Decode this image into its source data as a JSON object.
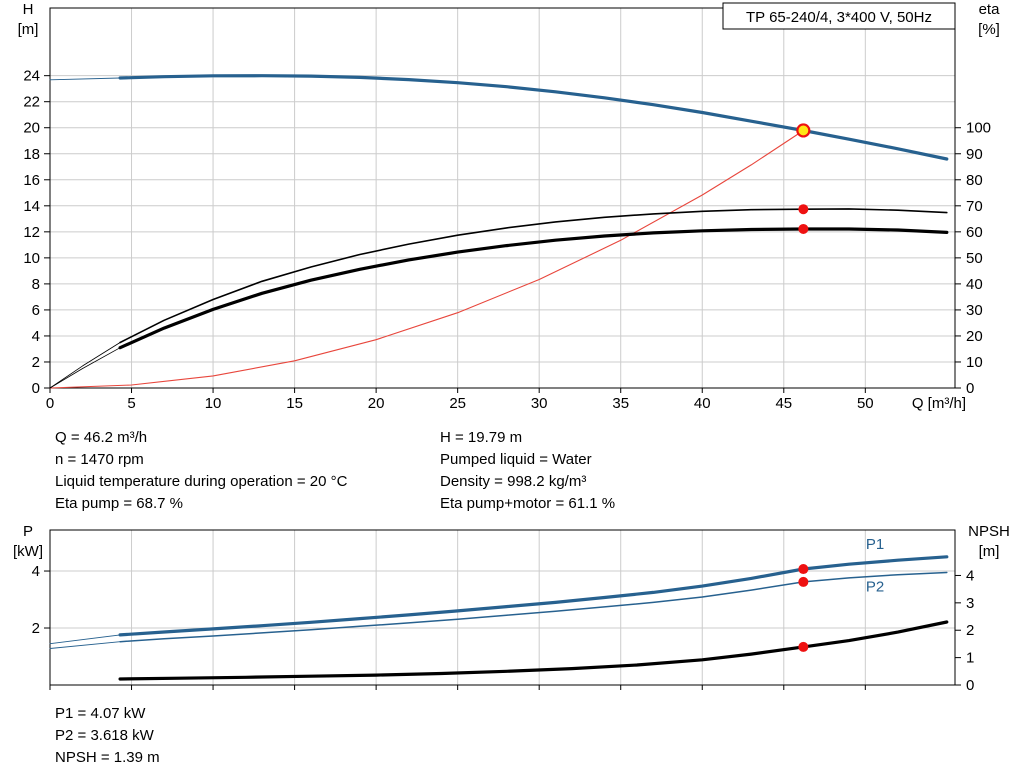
{
  "title_box": "TP 65-240/4, 3*400 V, 50Hz",
  "info": {
    "left": [
      "Q = 46.2 m³/h",
      "n = 1470 rpm",
      "Liquid temperature during operation = 20 °C",
      "Eta pump = 68.7 %"
    ],
    "right": [
      "H = 19.79 m",
      "Pumped liquid = Water",
      "Density = 998.2 kg/m³",
      "Eta pump+motor = 61.1 %"
    ],
    "bottom": [
      "P1 = 4.07 kW",
      "P2 = 3.618 kW",
      "NPSH = 1.39 m"
    ]
  },
  "colors": {
    "curve_blue": "#27618f",
    "system_red": "#e8463c",
    "dot_red": "#ee1111",
    "duty_fill": "#ffe615",
    "grid": "#cccccc",
    "black": "#000000"
  },
  "chart_data": [
    {
      "type": "line",
      "title": "TP 65-240/4, 3*400 V, 50Hz",
      "x_label": "Q [m³/h]",
      "y_left_label": [
        "H",
        "[m]"
      ],
      "y_right_label": [
        "eta",
        "[%]"
      ],
      "x_range": [
        0,
        55.5
      ],
      "x_ticks": [
        0,
        5,
        10,
        15,
        20,
        25,
        30,
        35,
        40,
        45,
        50
      ],
      "x_tick_labels": true,
      "y_left_range": [
        0,
        29.2
      ],
      "y_left_ticks": [
        0,
        2,
        4,
        6,
        8,
        10,
        12,
        14,
        16,
        18,
        20,
        22,
        24
      ],
      "y_right_range": [
        0,
        146
      ],
      "y_right_ticks": [
        0,
        10,
        20,
        30,
        40,
        50,
        60,
        70,
        80,
        90,
        100
      ],
      "series": [
        {
          "name": "head-curve-extension",
          "axis": "left",
          "color": "curve_blue",
          "width": 0.9,
          "points": [
            [
              0,
              23.68
            ],
            [
              4.3,
              23.82
            ]
          ]
        },
        {
          "name": "head-curve",
          "axis": "left",
          "color": "curve_blue",
          "width": 3.2,
          "points": [
            [
              4.3,
              23.82
            ],
            [
              7,
              23.92
            ],
            [
              10,
              23.99
            ],
            [
              13,
              24.0
            ],
            [
              16,
              23.97
            ],
            [
              19,
              23.87
            ],
            [
              22,
              23.7
            ],
            [
              25,
              23.46
            ],
            [
              28,
              23.15
            ],
            [
              31,
              22.76
            ],
            [
              34,
              22.3
            ],
            [
              37,
              21.77
            ],
            [
              40,
              21.17
            ],
            [
              43,
              20.5
            ],
            [
              46.2,
              19.79
            ],
            [
              49,
              19.12
            ],
            [
              52,
              18.38
            ],
            [
              55,
              17.6
            ]
          ]
        },
        {
          "name": "system-curve",
          "axis": "left",
          "color": "system_red",
          "width": 1.1,
          "points": [
            [
              0,
              0
            ],
            [
              5,
              0.23
            ],
            [
              10,
              0.93
            ],
            [
              15,
              2.09
            ],
            [
              20,
              3.71
            ],
            [
              25,
              5.79
            ],
            [
              30,
              8.34
            ],
            [
              35,
              11.35
            ],
            [
              40,
              14.83
            ],
            [
              43,
              17.14
            ],
            [
              46.2,
              19.79
            ]
          ]
        },
        {
          "name": "eta-pump-extension",
          "axis": "right",
          "color": "black",
          "width": 0.8,
          "points": [
            [
              0,
              0
            ],
            [
              2,
              8.5
            ],
            [
              4.3,
              17.5
            ]
          ]
        },
        {
          "name": "eta-pump-curve",
          "axis": "right",
          "color": "black",
          "width": 1.6,
          "points": [
            [
              4.3,
              17.5
            ],
            [
              7,
              26
            ],
            [
              10,
              34
            ],
            [
              13,
              41
            ],
            [
              16,
              46.5
            ],
            [
              19,
              51.3
            ],
            [
              22,
              55.3
            ],
            [
              25,
              58.7
            ],
            [
              28,
              61.5
            ],
            [
              31,
              63.8
            ],
            [
              34,
              65.6
            ],
            [
              37,
              66.9
            ],
            [
              40,
              67.9
            ],
            [
              43,
              68.5
            ],
            [
              46.2,
              68.7
            ],
            [
              49,
              68.8
            ],
            [
              52,
              68.3
            ],
            [
              55,
              67.4
            ]
          ]
        },
        {
          "name": "eta-pump-motor-extension",
          "axis": "right",
          "color": "black",
          "width": 0.8,
          "points": [
            [
              0,
              0
            ],
            [
              2,
              7.5
            ],
            [
              4.3,
              15.5
            ]
          ]
        },
        {
          "name": "eta-pump-motor-curve",
          "axis": "right",
          "color": "black",
          "width": 3.2,
          "points": [
            [
              4.3,
              15.5
            ],
            [
              7,
              23
            ],
            [
              10,
              30.2
            ],
            [
              13,
              36.4
            ],
            [
              16,
              41.4
            ],
            [
              19,
              45.6
            ],
            [
              22,
              49.2
            ],
            [
              25,
              52.2
            ],
            [
              28,
              54.7
            ],
            [
              31,
              56.8
            ],
            [
              34,
              58.4
            ],
            [
              37,
              59.6
            ],
            [
              40,
              60.4
            ],
            [
              43,
              60.9
            ],
            [
              46.2,
              61.1
            ],
            [
              49,
              61.1
            ],
            [
              52,
              60.7
            ],
            [
              55,
              59.8
            ]
          ]
        }
      ],
      "markers": [
        {
          "name": "duty-point-marker",
          "axis": "left",
          "x": 46.2,
          "y": 19.79,
          "style": "duty"
        },
        {
          "name": "eta-pump-marker",
          "axis": "right",
          "x": 46.2,
          "y": 68.7,
          "style": "dot"
        },
        {
          "name": "eta-pump-motor-marker",
          "axis": "right",
          "x": 46.2,
          "y": 61.1,
          "style": "dot"
        }
      ],
      "labels": []
    },
    {
      "type": "line",
      "x_label": "",
      "y_left_label": [
        "P",
        "[kW]"
      ],
      "y_right_label": [
        "NPSH",
        "[m]"
      ],
      "x_range": [
        0,
        55.5
      ],
      "x_ticks": [
        0,
        5,
        10,
        15,
        20,
        25,
        30,
        35,
        40,
        45,
        50
      ],
      "x_tick_labels": false,
      "y_left_range": [
        0,
        5.44
      ],
      "y_left_ticks": [
        2,
        4
      ],
      "y_right_range": [
        0,
        5.66
      ],
      "y_right_ticks": [
        0,
        1,
        2,
        3,
        4
      ],
      "series": [
        {
          "name": "p1-extension",
          "axis": "left",
          "color": "curve_blue",
          "width": 0.9,
          "points": [
            [
              0,
              1.45
            ],
            [
              4.3,
              1.76
            ]
          ]
        },
        {
          "name": "p2-extension",
          "axis": "left",
          "color": "curve_blue",
          "width": 0.9,
          "points": [
            [
              0,
              1.28
            ],
            [
              4.3,
              1.52
            ]
          ]
        },
        {
          "name": "p1-curve",
          "axis": "left",
          "color": "curve_blue",
          "width": 3.2,
          "points": [
            [
              4.3,
              1.76
            ],
            [
              7,
              1.86
            ],
            [
              10,
              1.97
            ],
            [
              13,
              2.08
            ],
            [
              16,
              2.2
            ],
            [
              19,
              2.33
            ],
            [
              22,
              2.46
            ],
            [
              25,
              2.6
            ],
            [
              28,
              2.75
            ],
            [
              31,
              2.9
            ],
            [
              34,
              3.07
            ],
            [
              37,
              3.25
            ],
            [
              40,
              3.47
            ],
            [
              43,
              3.74
            ],
            [
              46.2,
              4.07
            ],
            [
              49,
              4.24
            ],
            [
              52,
              4.38
            ],
            [
              55,
              4.5
            ]
          ]
        },
        {
          "name": "p2-curve",
          "axis": "left",
          "color": "curve_blue",
          "width": 1.5,
          "points": [
            [
              4.3,
              1.52
            ],
            [
              7,
              1.62
            ],
            [
              10,
              1.72
            ],
            [
              13,
              1.83
            ],
            [
              16,
              1.94
            ],
            [
              19,
              2.06
            ],
            [
              22,
              2.18
            ],
            [
              25,
              2.31
            ],
            [
              28,
              2.45
            ],
            [
              31,
              2.59
            ],
            [
              34,
              2.74
            ],
            [
              37,
              2.9
            ],
            [
              40,
              3.09
            ],
            [
              43,
              3.33
            ],
            [
              46.2,
              3.618
            ],
            [
              49,
              3.76
            ],
            [
              52,
              3.87
            ],
            [
              55,
              3.95
            ]
          ]
        },
        {
          "name": "npsh-curve",
          "axis": "right",
          "color": "black",
          "width": 3.2,
          "points": [
            [
              4.3,
              0.22
            ],
            [
              8,
              0.25
            ],
            [
              12,
              0.28
            ],
            [
              16,
              0.32
            ],
            [
              20,
              0.36
            ],
            [
              24,
              0.42
            ],
            [
              28,
              0.5
            ],
            [
              32,
              0.6
            ],
            [
              36,
              0.73
            ],
            [
              40,
              0.92
            ],
            [
              43,
              1.13
            ],
            [
              46.2,
              1.39
            ],
            [
              49,
              1.62
            ],
            [
              52,
              1.93
            ],
            [
              55,
              2.3
            ]
          ]
        }
      ],
      "markers": [
        {
          "name": "p1-marker",
          "axis": "left",
          "x": 46.2,
          "y": 4.07,
          "style": "dot"
        },
        {
          "name": "p2-marker",
          "axis": "left",
          "x": 46.2,
          "y": 3.618,
          "style": "dot"
        },
        {
          "name": "npsh-marker",
          "axis": "right",
          "x": 46.2,
          "y": 1.39,
          "style": "dot"
        }
      ],
      "labels": [
        {
          "text": "P1",
          "axis": "left",
          "x": 50.6,
          "y": 4.78,
          "color": "curve_blue"
        },
        {
          "text": "P2",
          "axis": "left",
          "x": 50.6,
          "y": 3.28,
          "color": "curve_blue"
        }
      ]
    }
  ]
}
